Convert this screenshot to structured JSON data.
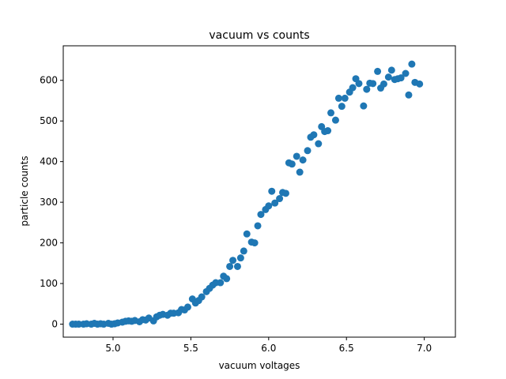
{
  "chart_data": {
    "type": "scatter",
    "title": "vacuum vs counts",
    "xlabel": "vacuum voltages",
    "ylabel": "particle counts",
    "xlim": [
      4.68,
      7.2
    ],
    "ylim": [
      -32,
      685
    ],
    "xticks": [
      5.0,
      5.5,
      6.0,
      6.5,
      7.0
    ],
    "xtick_labels": [
      "5.0",
      "5.5",
      "6.0",
      "6.5",
      "7.0"
    ],
    "yticks": [
      0,
      100,
      200,
      300,
      400,
      500,
      600
    ],
    "ytick_labels": [
      "0",
      "100",
      "200",
      "300",
      "400",
      "500",
      "600"
    ],
    "grid": false,
    "legend": "none",
    "marker_color": "#1f77b4",
    "series": [
      {
        "points": [
          [
            4.74,
            0
          ],
          [
            4.76,
            0
          ],
          [
            4.78,
            0
          ],
          [
            4.81,
            0
          ],
          [
            4.83,
            1
          ],
          [
            4.86,
            0
          ],
          [
            4.88,
            2
          ],
          [
            4.9,
            0
          ],
          [
            4.92,
            1
          ],
          [
            4.94,
            0
          ],
          [
            4.97,
            2
          ],
          [
            4.99,
            0
          ],
          [
            5.01,
            1
          ],
          [
            5.03,
            3
          ],
          [
            5.06,
            5
          ],
          [
            5.08,
            7
          ],
          [
            5.1,
            8
          ],
          [
            5.12,
            7
          ],
          [
            5.14,
            9
          ],
          [
            5.17,
            6
          ],
          [
            5.19,
            11
          ],
          [
            5.21,
            10
          ],
          [
            5.23,
            15
          ],
          [
            5.26,
            8
          ],
          [
            5.28,
            18
          ],
          [
            5.3,
            22
          ],
          [
            5.32,
            24
          ],
          [
            5.35,
            22
          ],
          [
            5.37,
            27
          ],
          [
            5.39,
            27
          ],
          [
            5.42,
            28
          ],
          [
            5.44,
            36
          ],
          [
            5.46,
            35
          ],
          [
            5.48,
            42
          ],
          [
            5.51,
            62
          ],
          [
            5.53,
            52
          ],
          [
            5.55,
            58
          ],
          [
            5.57,
            67
          ],
          [
            5.6,
            80
          ],
          [
            5.62,
            88
          ],
          [
            5.64,
            96
          ],
          [
            5.66,
            102
          ],
          [
            5.69,
            102
          ],
          [
            5.71,
            118
          ],
          [
            5.73,
            112
          ],
          [
            5.75,
            142
          ],
          [
            5.77,
            157
          ],
          [
            5.8,
            142
          ],
          [
            5.82,
            163
          ],
          [
            5.84,
            180
          ],
          [
            5.86,
            222
          ],
          [
            5.89,
            202
          ],
          [
            5.91,
            200
          ],
          [
            5.93,
            242
          ],
          [
            5.95,
            270
          ],
          [
            5.98,
            282
          ],
          [
            6.0,
            291
          ],
          [
            6.02,
            327
          ],
          [
            6.04,
            298
          ],
          [
            6.07,
            309
          ],
          [
            6.09,
            324
          ],
          [
            6.11,
            322
          ],
          [
            6.13,
            397
          ],
          [
            6.15,
            394
          ],
          [
            6.18,
            413
          ],
          [
            6.2,
            374
          ],
          [
            6.22,
            404
          ],
          [
            6.25,
            427
          ],
          [
            6.27,
            460
          ],
          [
            6.29,
            466
          ],
          [
            6.32,
            444
          ],
          [
            6.34,
            486
          ],
          [
            6.36,
            474
          ],
          [
            6.38,
            476
          ],
          [
            6.4,
            520
          ],
          [
            6.43,
            502
          ],
          [
            6.45,
            556
          ],
          [
            6.47,
            536
          ],
          [
            6.49,
            556
          ],
          [
            6.52,
            571
          ],
          [
            6.54,
            582
          ],
          [
            6.56,
            604
          ],
          [
            6.58,
            592
          ],
          [
            6.61,
            537
          ],
          [
            6.63,
            578
          ],
          [
            6.65,
            593
          ],
          [
            6.67,
            592
          ],
          [
            6.7,
            622
          ],
          [
            6.72,
            581
          ],
          [
            6.74,
            591
          ],
          [
            6.77,
            608
          ],
          [
            6.79,
            625
          ],
          [
            6.81,
            602
          ],
          [
            6.83,
            604
          ],
          [
            6.85,
            606
          ],
          [
            6.88,
            617
          ],
          [
            6.9,
            564
          ],
          [
            6.92,
            640
          ],
          [
            6.94,
            595
          ],
          [
            6.97,
            591
          ]
        ]
      }
    ]
  }
}
